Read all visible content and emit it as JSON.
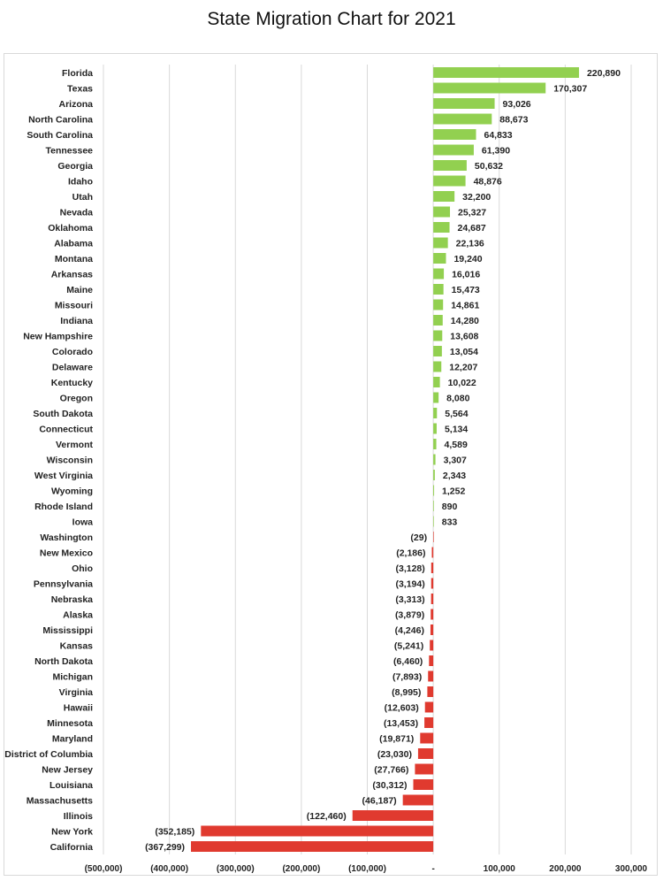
{
  "chart_data": {
    "type": "bar",
    "orientation": "horizontal",
    "title": "State Migration Chart for 2021",
    "xlabel": "",
    "ylabel": "",
    "xlim": [
      -500000,
      300000
    ],
    "grid": "vertical",
    "colors": {
      "positive": "#92d050",
      "negative": "#e03a2f",
      "grid": "#d9d9d9"
    },
    "x_tick_labels": [
      "(500,000)",
      "(400,000)",
      "(300,000)",
      "(200,000)",
      "(100,000)",
      "-",
      "100,000",
      "200,000",
      "300,000"
    ],
    "x_ticks": [
      -500000,
      -400000,
      -300000,
      -200000,
      -100000,
      0,
      100000,
      200000,
      300000
    ],
    "categories": [
      "Florida",
      "Texas",
      "Arizona",
      "North Carolina",
      "South Carolina",
      "Tennessee",
      "Georgia",
      "Idaho",
      "Utah",
      "Nevada",
      "Oklahoma",
      "Alabama",
      "Montana",
      "Arkansas",
      "Maine",
      "Missouri",
      "Indiana",
      "New Hampshire",
      "Colorado",
      "Delaware",
      "Kentucky",
      "Oregon",
      "South Dakota",
      "Connecticut",
      "Vermont",
      "Wisconsin",
      "West Virginia",
      "Wyoming",
      "Rhode Island",
      "Iowa",
      "Washington",
      "New Mexico",
      "Ohio",
      "Pennsylvania",
      "Nebraska",
      "Alaska",
      "Mississippi",
      "Kansas",
      "North Dakota",
      "Michigan",
      "Virginia",
      "Hawaii",
      "Minnesota",
      "Maryland",
      "District of Columbia",
      "New Jersey",
      "Louisiana",
      "Massachusetts",
      "Illinois",
      "New York",
      "California"
    ],
    "values": [
      220890,
      170307,
      93026,
      88673,
      64833,
      61390,
      50632,
      48876,
      32200,
      25327,
      24687,
      22136,
      19240,
      16016,
      15473,
      14861,
      14280,
      13608,
      13054,
      12207,
      10022,
      8080,
      5564,
      5134,
      4589,
      3307,
      2343,
      1252,
      890,
      833,
      -29,
      -2186,
      -3128,
      -3194,
      -3313,
      -3879,
      -4246,
      -5241,
      -6460,
      -7893,
      -8995,
      -12603,
      -13453,
      -19871,
      -23030,
      -27766,
      -30312,
      -46187,
      -122460,
      -352185,
      -367299
    ],
    "value_labels": [
      "220,890",
      "170,307",
      "93,026",
      "88,673",
      "64,833",
      "61,390",
      "50,632",
      "48,876",
      "32,200",
      "25,327",
      "24,687",
      "22,136",
      "19,240",
      "16,016",
      "15,473",
      "14,861",
      "14,280",
      "13,608",
      "13,054",
      "12,207",
      "10,022",
      "8,080",
      "5,564",
      "5,134",
      "4,589",
      "3,307",
      "2,343",
      "1,252",
      "890",
      "833",
      "(29)",
      "(2,186)",
      "(3,128)",
      "(3,194)",
      "(3,313)",
      "(3,879)",
      "(4,246)",
      "(5,241)",
      "(6,460)",
      "(7,893)",
      "(8,995)",
      "(12,603)",
      "(13,453)",
      "(19,871)",
      "(23,030)",
      "(27,766)",
      "(30,312)",
      "(46,187)",
      "(122,460)",
      "(352,185)",
      "(367,299)"
    ]
  }
}
